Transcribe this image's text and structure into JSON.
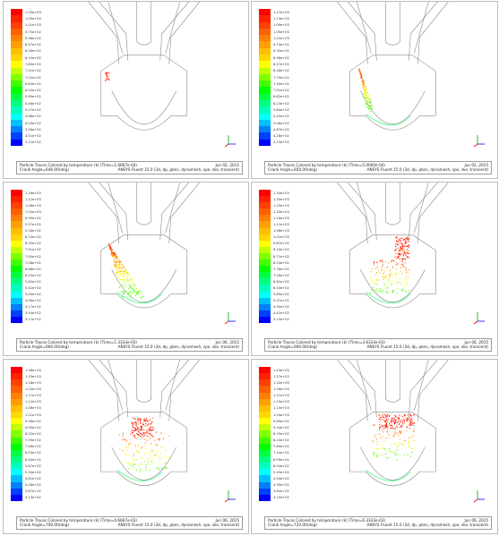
{
  "figure": {
    "color_scale": [
      "#0000ff",
      "#0040ff",
      "#0080ff",
      "#00bfff",
      "#00ffff",
      "#00ffbf",
      "#00ff80",
      "#00ff40",
      "#00ff00",
      "#40ff00",
      "#80ff00",
      "#bfff00",
      "#ffff00",
      "#ffd700",
      "#ffbf00",
      "#ff9f00",
      "#ff8000",
      "#ff6000",
      "#ff4000",
      "#ff2000",
      "#ff0000"
    ],
    "panels": [
      {
        "id": "p1",
        "legend_labels": [
          "1.09e+03",
          "1.05e+03",
          "1.01e+03",
          "9.75e+02",
          "9.36e+02",
          "8.97e+02",
          "8.58e+02",
          "8.19e+02",
          "7.80e+02",
          "7.41e+02",
          "7.02e+02",
          "6.63e+02",
          "6.24e+02",
          "5.85e+02",
          "5.46e+02",
          "5.07e+02",
          "4.68e+02",
          "4.29e+02",
          "3.90e+02",
          "3.51e+02",
          "3.12e+02"
        ],
        "footer": {
          "line1_left": "Particle Traces Colored by temperature (k)  (Time=1.6667e-04)",
          "line2_left": "Crank Angle=646.00(deg)",
          "line1_right": "Jun 02, 2015",
          "line2_right": "ANSYS Fluent 15.0 (3d, dp, pbns, dynamesh, spe, ske, transient)"
        }
      },
      {
        "id": "p2",
        "legend_labels": [
          "1.17e+03",
          "1.13e+03",
          "1.09e+03",
          "1.05e+03",
          "1.01e+03",
          "9.74e+02",
          "9.35e+02",
          "8.96e+02",
          "8.57e+02",
          "8.18e+02",
          "7.79e+02",
          "7.40e+02",
          "7.01e+02",
          "6.62e+02",
          "6.23e+02",
          "5.84e+02",
          "5.45e+02",
          "5.06e+02",
          "4.67e+02",
          "4.28e+02",
          "3.13e+02"
        ],
        "footer": {
          "line1_left": "Particle Traces Colored by temperature (k)  (Time=5.0000e-04)",
          "line2_left": "Crank Angle=650.00(deg)",
          "line1_right": "Jun 02, 2015",
          "line2_right": "ANSYS Fluent 15.0 (3d, dp, pbns, dynamesh, spe, ske, transient)"
        }
      },
      {
        "id": "p3",
        "legend_labels": [
          "1.16e+03",
          "1.12e+03",
          "1.08e+03",
          "1.04e+03",
          "9.99e+02",
          "9.57e+02",
          "9.16e+02",
          "8.74e+02",
          "8.33e+02",
          "7.91e+02",
          "7.50e+02",
          "7.08e+02",
          "6.66e+02",
          "6.25e+02",
          "5.83e+02",
          "5.42e+02",
          "5.00e+02",
          "4.58e+02",
          "4.17e+02",
          "3.54e+02",
          "3.11e+02"
        ],
        "footer": {
          "line1_left": "Particle Traces Colored by temperature (k)  (Time=1.3333e-03)",
          "line2_left": "Crank Angle=660.00(deg)",
          "line1_right": "Jun 06, 2015",
          "line2_right": "ANSYS Fluent 15.0 (3d, dp, pbns, dynamesh, spe, ske, transient)"
        }
      },
      {
        "id": "p4",
        "legend_labels": [
          "1.34e+03",
          "1.30e+03",
          "1.25e+03",
          "1.20e+03",
          "1.16e+03",
          "1.11e+03",
          "1.06e+03",
          "1.01e+03",
          "9.67e+02",
          "9.19e+02",
          "8.71e+02",
          "8.24e+02",
          "7.76e+02",
          "7.28e+02",
          "6.81e+02",
          "6.33e+02",
          "5.85e+02",
          "5.37e+02",
          "4.90e+02",
          "4.42e+02",
          "3.15e+02"
        ],
        "footer": {
          "line1_left": "Particle Traces Colored by temperature (k)  (Time=3.6333e-03)",
          "line2_left": "Crank Angle=690.00(deg)",
          "line1_right": "Jun 06, 2015",
          "line2_right": "ANSYS Fluent 15.0 (3d, dp, pbns, dynamesh, spe, ske, transient)"
        }
      },
      {
        "id": "p5",
        "legend_labels": [
          "1.38e+03",
          "1.33e+03",
          "1.28e+03",
          "1.22e+03",
          "1.17e+03",
          "1.12e+03",
          "1.06e+03",
          "1.01e+03",
          "9.58e+02",
          "9.05e+02",
          "8.52e+02",
          "7.99e+02",
          "7.46e+02",
          "6.93e+02",
          "6.40e+02",
          "5.87e+02",
          "5.34e+02",
          "4.81e+02",
          "4.28e+02",
          "3.67e+02",
          "3.13e+02"
        ],
        "footer": {
          "line1_left": "Particle Traces Colored by temperature (k)  (Time=4.6667e-03)",
          "line2_left": "Crank Angle=700.00(deg)",
          "line1_right": "Jun 06, 2015",
          "line2_right": "ANSYS Fluent 15.0 (3d, dp, pbns, dynamesh, spe, ske, transient)"
        }
      },
      {
        "id": "p6",
        "legend_labels": [
          "1.43e+03",
          "1.37e+03",
          "1.32e+03",
          "1.26e+03",
          "1.21e+03",
          "1.15e+03",
          "1.10e+03",
          "1.04e+03",
          "9.89e+02",
          "9.34e+02",
          "8.79e+02",
          "8.24e+02",
          "7.69e+02",
          "7.14e+02",
          "6.59e+02",
          "6.04e+02",
          "5.49e+02",
          "4.94e+02",
          "4.39e+02",
          "3.84e+02",
          "3.15e+02"
        ],
        "footer": {
          "line1_left": "Particle Traces Colored by temperature (k)  (Time=6.3333e-03)",
          "line2_left": "Crank Angle=720.00(deg)",
          "line1_right": "Jun 06, 2015",
          "line2_right": "ANSYS Fluent 15.0 (3d, dp, pbns, dynamesh, spe, ske, transient)"
        }
      }
    ]
  }
}
